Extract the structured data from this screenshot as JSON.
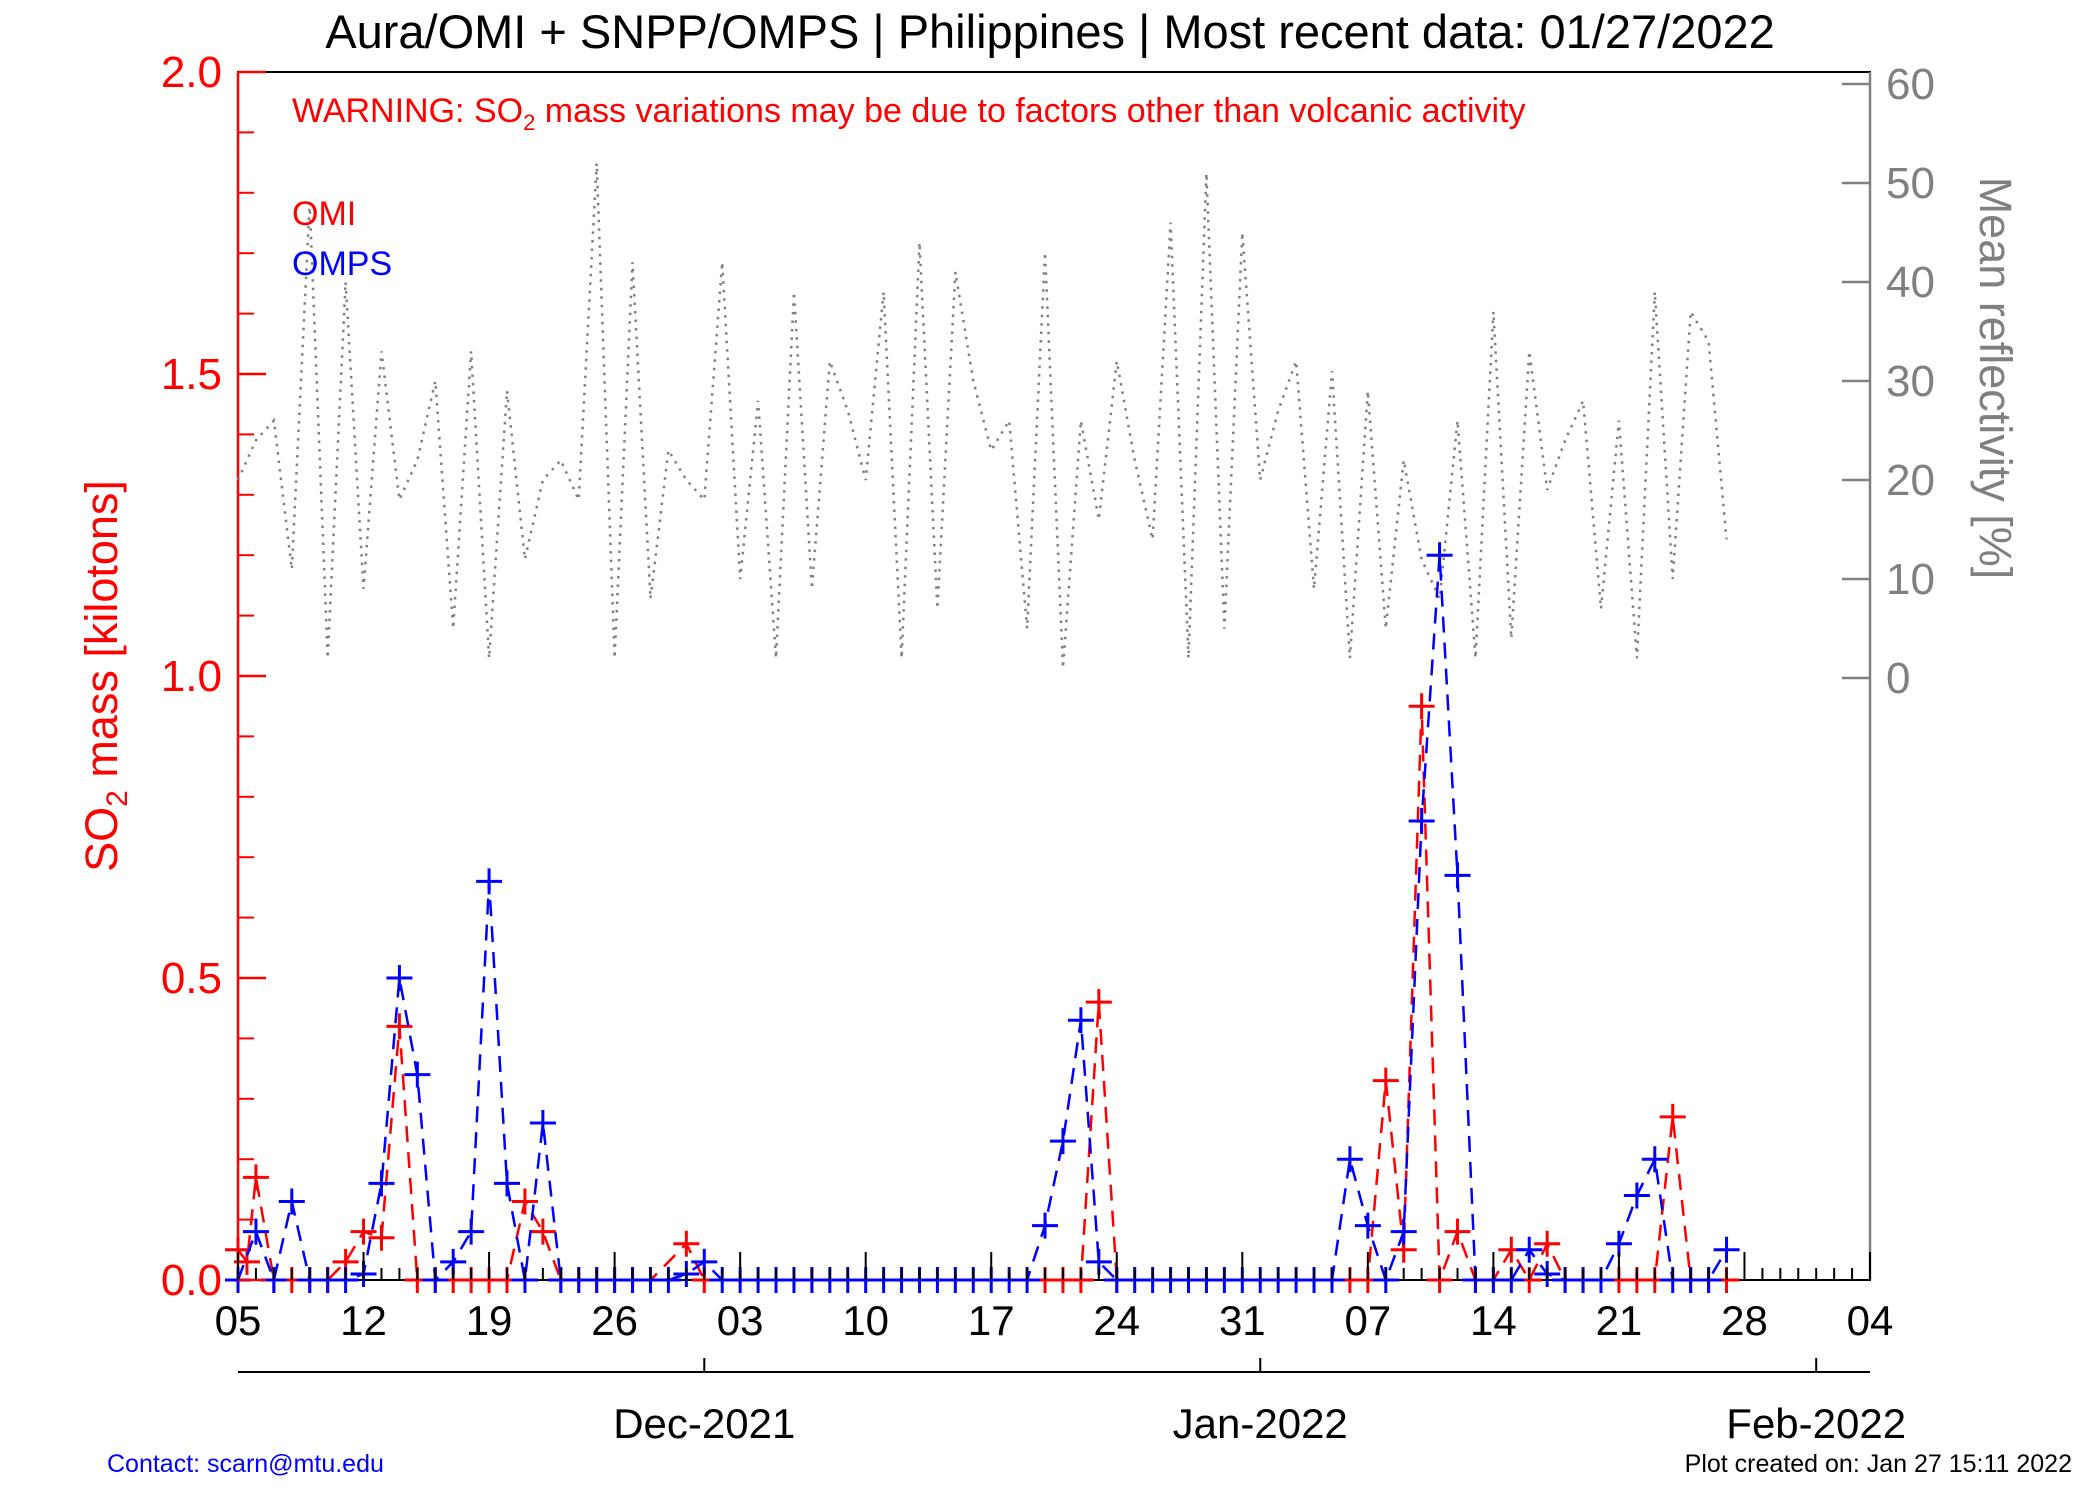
{
  "title": "Aura/OMI + SNPP/OMPS | Philippines | Most recent data: 01/27/2022",
  "warning": {
    "prefix": "WARNING: SO",
    "subscript": "2",
    "suffix": " mass variations may be due to factors other than volcanic activity"
  },
  "footer": {
    "contact": "Contact: scarn@mtu.edu",
    "created": "Plot created on: Jan 27 15:11 2022"
  },
  "colors": {
    "omi": "#ff0000",
    "omps": "#0000ff",
    "reflectivity": "#808080",
    "axis_left": "#ff0000",
    "axis_right": "#808080"
  },
  "chart_data": {
    "type": "line",
    "x_axis": {
      "start": "2021-11-05",
      "end": "2022-02-04",
      "tick_dates": [
        "2021-11-05",
        "2021-11-12",
        "2021-11-19",
        "2021-11-26",
        "2021-12-03",
        "2021-12-10",
        "2021-12-17",
        "2021-12-24",
        "2021-12-31",
        "2022-01-07",
        "2022-01-14",
        "2022-01-21",
        "2022-01-28",
        "2022-02-04"
      ],
      "tick_labels": [
        "05",
        "12",
        "19",
        "26",
        "03",
        "10",
        "17",
        "24",
        "31",
        "07",
        "14",
        "21",
        "28",
        "04"
      ],
      "month_dates": [
        "2021-12-01",
        "2022-01-01",
        "2022-02-01"
      ],
      "month_labels": [
        "Dec-2021",
        "Jan-2022",
        "Feb-2022"
      ]
    },
    "y_left": {
      "label_prefix": "SO",
      "label_sub": "2",
      "label_suffix": " mass [kilotons]",
      "ylim": [
        0,
        2
      ],
      "ticks": [
        0,
        0.5,
        1,
        1.5,
        2
      ],
      "tick_labels": [
        "0.0",
        "0.5",
        "1.0",
        "1.5",
        "2.0"
      ]
    },
    "y_right": {
      "label": "Mean reflectivity [%]",
      "ylim": [
        0,
        60
      ],
      "ticks": [
        0,
        10,
        20,
        30,
        40,
        50,
        60
      ],
      "tick_labels": [
        "0",
        "10",
        "20",
        "30",
        "40",
        "50",
        "60"
      ]
    },
    "series": [
      {
        "name": "OMI",
        "style": "dashed-plus",
        "points": [
          [
            "2021-11-05",
            0.05
          ],
          [
            "2021-11-05T12",
            0.03
          ],
          [
            "2021-11-06",
            0.17
          ],
          [
            "2021-11-07",
            0.0
          ],
          [
            "2021-11-08",
            0.0
          ],
          [
            "2021-11-09",
            0.0
          ],
          [
            "2021-11-10",
            0.0
          ],
          [
            "2021-11-11",
            0.03
          ],
          [
            "2021-11-12",
            0.08
          ],
          [
            "2021-11-13",
            0.07
          ],
          [
            "2021-11-14",
            0.42
          ],
          [
            "2021-11-15",
            0.0
          ],
          [
            "2021-11-16",
            0.0
          ],
          [
            "2021-11-17",
            0.0
          ],
          [
            "2021-11-18",
            0.0
          ],
          [
            "2021-11-19",
            0.0
          ],
          [
            "2021-11-20",
            0.0
          ],
          [
            "2021-11-21",
            0.13
          ],
          [
            "2021-11-22",
            0.08
          ],
          [
            "2021-11-23",
            0.0
          ],
          [
            "2021-11-24",
            0.0
          ],
          [
            "2021-11-25",
            0.0
          ],
          [
            "2021-11-26",
            0.0
          ],
          [
            "2021-11-27",
            0.0
          ],
          [
            "2021-11-28",
            0.0
          ],
          [
            "2021-11-30",
            0.06
          ],
          [
            "2021-12-01",
            0.0
          ],
          [
            "2021-12-07",
            0.0
          ],
          [
            "2021-12-20",
            0.0
          ],
          [
            "2021-12-21",
            0.0
          ],
          [
            "2021-12-22",
            0.0
          ],
          [
            "2021-12-23",
            0.46
          ],
          [
            "2021-12-24",
            0.0
          ],
          [
            "2022-01-06",
            0.0
          ],
          [
            "2022-01-07",
            0.0
          ],
          [
            "2022-01-08",
            0.33
          ],
          [
            "2022-01-09",
            0.05
          ],
          [
            "2022-01-10",
            0.95
          ],
          [
            "2022-01-11",
            0.0
          ],
          [
            "2022-01-12",
            0.08
          ],
          [
            "2022-01-13",
            0.0
          ],
          [
            "2022-01-14",
            0.0
          ],
          [
            "2022-01-15",
            0.05
          ],
          [
            "2022-01-16",
            0.0
          ],
          [
            "2022-01-17",
            0.06
          ],
          [
            "2022-01-18",
            0.0
          ],
          [
            "2022-01-19",
            0.0
          ],
          [
            "2022-01-20",
            0.0
          ],
          [
            "2022-01-21",
            0.0
          ],
          [
            "2022-01-22",
            0.0
          ],
          [
            "2022-01-23",
            0.0
          ],
          [
            "2022-01-24",
            0.27
          ],
          [
            "2022-01-25",
            0.0
          ],
          [
            "2022-01-26",
            0.0
          ],
          [
            "2022-01-27",
            0.0
          ]
        ]
      },
      {
        "name": "OMPS",
        "style": "dashed-plus",
        "points": [
          [
            "2021-11-05",
            0.0
          ],
          [
            "2021-11-06",
            0.08
          ],
          [
            "2021-11-07",
            0.0
          ],
          [
            "2021-11-08",
            0.13
          ],
          [
            "2021-11-09",
            0.0
          ],
          [
            "2021-11-10",
            0.0
          ],
          [
            "2021-11-11",
            0.0
          ],
          [
            "2021-11-12",
            0.01
          ],
          [
            "2021-11-13",
            0.16
          ],
          [
            "2021-11-14",
            0.5
          ],
          [
            "2021-11-15",
            0.34
          ],
          [
            "2021-11-16",
            0.0
          ],
          [
            "2021-11-17",
            0.03
          ],
          [
            "2021-11-18",
            0.08
          ],
          [
            "2021-11-19",
            0.66
          ],
          [
            "2021-11-20",
            0.16
          ],
          [
            "2021-11-21",
            0.0
          ],
          [
            "2021-11-22",
            0.26
          ],
          [
            "2021-11-23",
            0.0
          ],
          [
            "2021-11-24",
            0.0
          ],
          [
            "2021-11-25",
            0.0
          ],
          [
            "2021-11-26",
            0.0
          ],
          [
            "2021-11-27",
            0.0
          ],
          [
            "2021-11-28",
            0.0
          ],
          [
            "2021-11-29",
            0.0
          ],
          [
            "2021-11-30",
            0.01
          ],
          [
            "2021-12-01",
            0.03
          ],
          [
            "2021-12-02",
            0.0
          ],
          [
            "2021-12-03",
            0.0
          ],
          [
            "2021-12-04",
            0.0
          ],
          [
            "2021-12-05",
            0.0
          ],
          [
            "2021-12-06",
            0.0
          ],
          [
            "2021-12-07",
            0.0
          ],
          [
            "2021-12-08",
            0.0
          ],
          [
            "2021-12-09",
            0.0
          ],
          [
            "2021-12-10",
            0.0
          ],
          [
            "2021-12-11",
            0.0
          ],
          [
            "2021-12-12",
            0.0
          ],
          [
            "2021-12-13",
            0.0
          ],
          [
            "2021-12-14",
            0.0
          ],
          [
            "2021-12-15",
            0.0
          ],
          [
            "2021-12-16",
            0.0
          ],
          [
            "2021-12-17",
            0.0
          ],
          [
            "2021-12-18",
            0.0
          ],
          [
            "2021-12-19",
            0.0
          ],
          [
            "2021-12-20",
            0.09
          ],
          [
            "2021-12-21",
            0.23
          ],
          [
            "2021-12-22",
            0.43
          ],
          [
            "2021-12-23",
            0.03
          ],
          [
            "2021-12-24",
            0.0
          ],
          [
            "2021-12-25",
            0.0
          ],
          [
            "2021-12-26",
            0.0
          ],
          [
            "2021-12-27",
            0.0
          ],
          [
            "2021-12-28",
            0.0
          ],
          [
            "2021-12-29",
            0.0
          ],
          [
            "2021-12-30",
            0.0
          ],
          [
            "2021-12-31",
            0.0
          ],
          [
            "2022-01-01",
            0.0
          ],
          [
            "2022-01-02",
            0.0
          ],
          [
            "2022-01-03",
            0.0
          ],
          [
            "2022-01-04",
            0.0
          ],
          [
            "2022-01-05",
            0.0
          ],
          [
            "2022-01-06",
            0.2
          ],
          [
            "2022-01-07",
            0.09
          ],
          [
            "2022-01-08",
            0.0
          ],
          [
            "2022-01-09",
            0.08
          ],
          [
            "2022-01-10",
            0.76
          ],
          [
            "2022-01-11",
            1.2
          ],
          [
            "2022-01-12",
            0.67
          ],
          [
            "2022-01-13",
            0.0
          ],
          [
            "2022-01-14",
            0.0
          ],
          [
            "2022-01-15",
            0.0
          ],
          [
            "2022-01-16",
            0.05
          ],
          [
            "2022-01-17",
            0.01
          ],
          [
            "2022-01-18",
            0.0
          ],
          [
            "2022-01-19",
            0.0
          ],
          [
            "2022-01-20",
            0.0
          ],
          [
            "2022-01-21",
            0.06
          ],
          [
            "2022-01-22",
            0.14
          ],
          [
            "2022-01-23",
            0.2
          ],
          [
            "2022-01-24",
            0.0
          ],
          [
            "2022-01-25",
            0.0
          ],
          [
            "2022-01-26",
            0.0
          ],
          [
            "2022-01-27",
            0.05
          ]
        ]
      },
      {
        "axis": "right",
        "style": "dotted",
        "points": [
          [
            "2021-11-05",
            20
          ],
          [
            "2021-11-06",
            24
          ],
          [
            "2021-11-07",
            26
          ],
          [
            "2021-11-08",
            11
          ],
          [
            "2021-11-09",
            48
          ],
          [
            "2021-11-10",
            2
          ],
          [
            "2021-11-11",
            40
          ],
          [
            "2021-11-12",
            9
          ],
          [
            "2021-11-13",
            33
          ],
          [
            "2021-11-14",
            18
          ],
          [
            "2021-11-15",
            22
          ],
          [
            "2021-11-16",
            30
          ],
          [
            "2021-11-17",
            5
          ],
          [
            "2021-11-18",
            33
          ],
          [
            "2021-11-19",
            2
          ],
          [
            "2021-11-20",
            29
          ],
          [
            "2021-11-21",
            12
          ],
          [
            "2021-11-22",
            20
          ],
          [
            "2021-11-23",
            22
          ],
          [
            "2021-11-24",
            18
          ],
          [
            "2021-11-25",
            52
          ],
          [
            "2021-11-26",
            2
          ],
          [
            "2021-11-27",
            42
          ],
          [
            "2021-11-28",
            8
          ],
          [
            "2021-11-29",
            23
          ],
          [
            "2021-11-30",
            20
          ],
          [
            "2021-12-01",
            18
          ],
          [
            "2021-12-02",
            42
          ],
          [
            "2021-12-03",
            10
          ],
          [
            "2021-12-04",
            28
          ],
          [
            "2021-12-05",
            2
          ],
          [
            "2021-12-06",
            39
          ],
          [
            "2021-12-07",
            9
          ],
          [
            "2021-12-08",
            32
          ],
          [
            "2021-12-09",
            27
          ],
          [
            "2021-12-10",
            20
          ],
          [
            "2021-12-11",
            39
          ],
          [
            "2021-12-12",
            2
          ],
          [
            "2021-12-13",
            44
          ],
          [
            "2021-12-14",
            7
          ],
          [
            "2021-12-15",
            41
          ],
          [
            "2021-12-16",
            30
          ],
          [
            "2021-12-17",
            23
          ],
          [
            "2021-12-18",
            26
          ],
          [
            "2021-12-19",
            5
          ],
          [
            "2021-12-20",
            43
          ],
          [
            "2021-12-21",
            1
          ],
          [
            "2021-12-22",
            26
          ],
          [
            "2021-12-23",
            16
          ],
          [
            "2021-12-24",
            32
          ],
          [
            "2021-12-25",
            22
          ],
          [
            "2021-12-26",
            14
          ],
          [
            "2021-12-27",
            46
          ],
          [
            "2021-12-28",
            2
          ],
          [
            "2021-12-29",
            51
          ],
          [
            "2021-12-30",
            5
          ],
          [
            "2021-12-31",
            45
          ],
          [
            "2022-01-01",
            20
          ],
          [
            "2022-01-02",
            27
          ],
          [
            "2022-01-03",
            32
          ],
          [
            "2022-01-04",
            9
          ],
          [
            "2022-01-05",
            31
          ],
          [
            "2022-01-06",
            2
          ],
          [
            "2022-01-07",
            29
          ],
          [
            "2022-01-08",
            5
          ],
          [
            "2022-01-09",
            22
          ],
          [
            "2022-01-10",
            12
          ],
          [
            "2022-01-11",
            8
          ],
          [
            "2022-01-12",
            26
          ],
          [
            "2022-01-13",
            2
          ],
          [
            "2022-01-14",
            37
          ],
          [
            "2022-01-15",
            4
          ],
          [
            "2022-01-16",
            33
          ],
          [
            "2022-01-17",
            19
          ],
          [
            "2022-01-18",
            24
          ],
          [
            "2022-01-19",
            28
          ],
          [
            "2022-01-20",
            7
          ],
          [
            "2022-01-21",
            26
          ],
          [
            "2022-01-22",
            2
          ],
          [
            "2022-01-23",
            39
          ],
          [
            "2022-01-24",
            10
          ],
          [
            "2022-01-25",
            37
          ],
          [
            "2022-01-26",
            34
          ],
          [
            "2022-01-27",
            14
          ]
        ]
      }
    ]
  }
}
